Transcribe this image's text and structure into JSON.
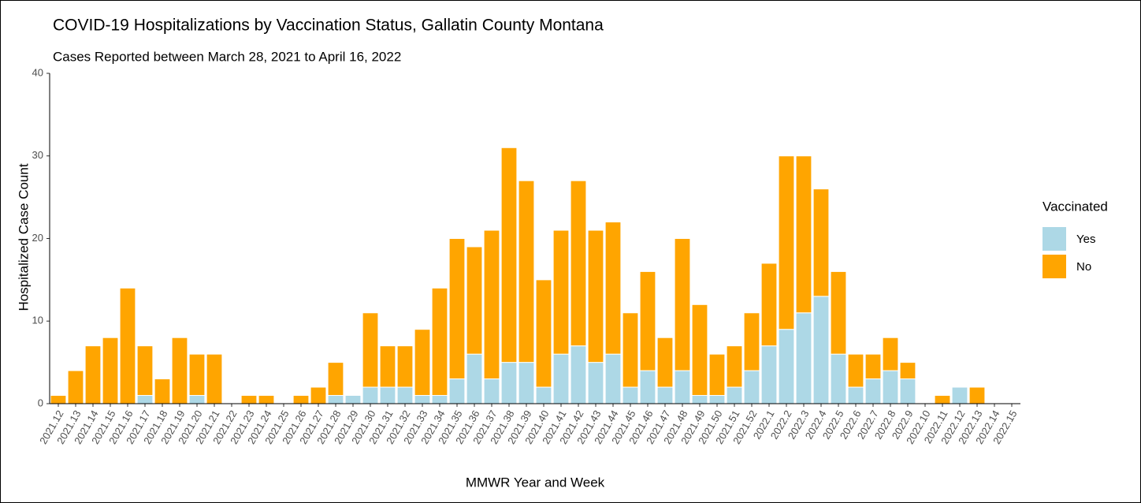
{
  "chart_data": {
    "type": "stacked-bar",
    "title": "COVID-19 Hospitalizations by Vaccination Status, Gallatin County Montana",
    "subtitle": "Cases Reported between March 28, 2021 to April 16, 2022",
    "x_label": "MMWR Year and Week",
    "y_label": "Hospitalized Case Count",
    "legend_title": "Vaccinated",
    "categories": [
      "2021.12",
      "2021.13",
      "2021.14",
      "2021.15",
      "2021.16",
      "2021.17",
      "2021.18",
      "2021.19",
      "2021.20",
      "2021.21",
      "2021.22",
      "2021.23",
      "2021.24",
      "2021.25",
      "2021.26",
      "2021.27",
      "2021.28",
      "2021.29",
      "2021.30",
      "2021.31",
      "2021.32",
      "2021.33",
      "2021.34",
      "2021.35",
      "2021.36",
      "2021.37",
      "2021.38",
      "2021.39",
      "2021.40",
      "2021.41",
      "2021.42",
      "2021.43",
      "2021.44",
      "2021.45",
      "2021.46",
      "2021.47",
      "2021.48",
      "2021.49",
      "2021.50",
      "2021.51",
      "2021.52",
      "2022.1",
      "2022.2",
      "2022.3",
      "2022.4",
      "2022.5",
      "2022.6",
      "2022.7",
      "2022.8",
      "2022.9",
      "2022.10",
      "2022.11",
      "2022.12",
      "2022.13",
      "2022.14",
      "2022.15"
    ],
    "series": [
      {
        "name": "Yes",
        "color": "#add8e6",
        "values": [
          0,
          0,
          0,
          0,
          0,
          1,
          0,
          0,
          1,
          0,
          0,
          0,
          0,
          0,
          0,
          0,
          1,
          1,
          2,
          2,
          2,
          1,
          1,
          3,
          6,
          3,
          5,
          5,
          2,
          6,
          7,
          5,
          6,
          2,
          4,
          2,
          4,
          1,
          1,
          2,
          4,
          7,
          9,
          11,
          13,
          6,
          2,
          3,
          4,
          3,
          0,
          0,
          2,
          0,
          0,
          0
        ]
      },
      {
        "name": "No",
        "color": "#ffa500",
        "values": [
          1,
          4,
          7,
          8,
          14,
          6,
          3,
          8,
          5,
          6,
          0,
          1,
          1,
          0,
          1,
          2,
          4,
          0,
          9,
          5,
          5,
          8,
          13,
          17,
          13,
          18,
          26,
          22,
          13,
          15,
          20,
          16,
          16,
          9,
          12,
          6,
          16,
          11,
          5,
          5,
          7,
          10,
          21,
          19,
          13,
          10,
          4,
          3,
          4,
          2,
          0,
          1,
          0,
          2,
          0,
          0
        ]
      }
    ],
    "ylim": [
      0,
      40
    ],
    "yticks": [
      0,
      10,
      20,
      30,
      40
    ],
    "grid": false
  }
}
